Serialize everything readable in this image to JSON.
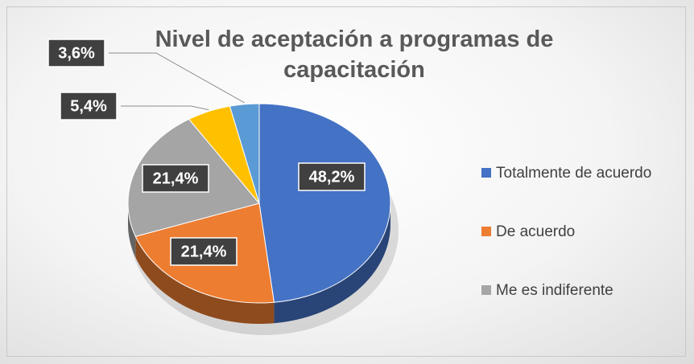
{
  "chart_data": {
    "type": "pie",
    "title": "Nivel de aceptación a programas de capacitación",
    "categories": [
      "Totalmente de acuerdo",
      "De acuerdo",
      "Me es indiferente",
      null,
      null
    ],
    "values": [
      48.2,
      21.4,
      21.4,
      5.4,
      3.6
    ],
    "value_labels": [
      "48,2%",
      "21,4%",
      "21,4%",
      "5,4%",
      "3,6%"
    ],
    "colors": [
      "#4472c4",
      "#ed7d31",
      "#a5a5a5",
      "#ffc000",
      "#5b9bd5"
    ],
    "legend": "right"
  }
}
